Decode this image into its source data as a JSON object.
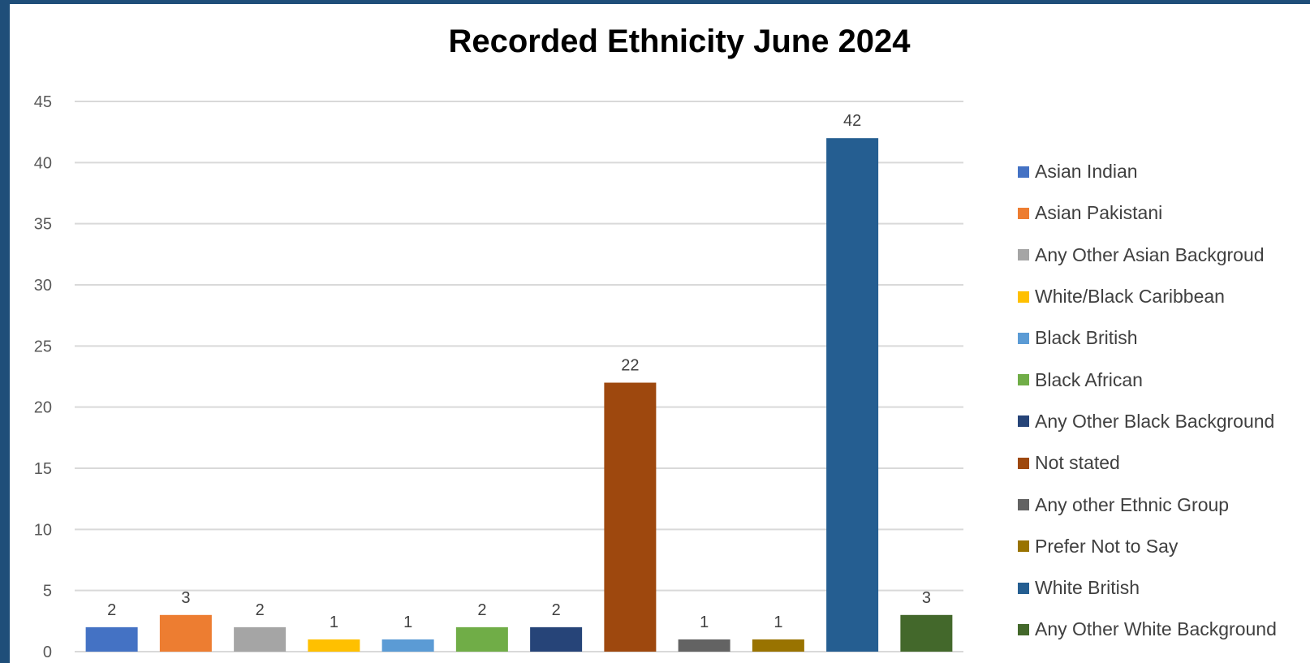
{
  "chart_data": {
    "type": "bar",
    "title": "Recorded Ethnicity June 2024",
    "categories": [
      "Asian Indian",
      "Asian Pakistani",
      "Any Other Asian Backgroud",
      "White/Black Caribbean",
      "Black British",
      "Black African",
      "Any Other Black Background",
      "Not stated",
      "Any other Ethnic Group",
      "Prefer Not to Say",
      "White British",
      "Any Other White Background"
    ],
    "values": [
      2,
      3,
      2,
      1,
      1,
      2,
      2,
      22,
      1,
      1,
      42,
      3
    ],
    "colors": [
      "#4472c4",
      "#ed7d31",
      "#a5a5a5",
      "#ffc000",
      "#5b9bd5",
      "#70ad47",
      "#264478",
      "#9e480e",
      "#636363",
      "#997300",
      "#255e91",
      "#43682b"
    ],
    "ylim": [
      0,
      45
    ],
    "yticks": [
      "0",
      "5",
      "10",
      "15",
      "20",
      "25",
      "30",
      "35",
      "40",
      "45"
    ],
    "grid": true,
    "legend_position": "right",
    "data_labels": true
  }
}
